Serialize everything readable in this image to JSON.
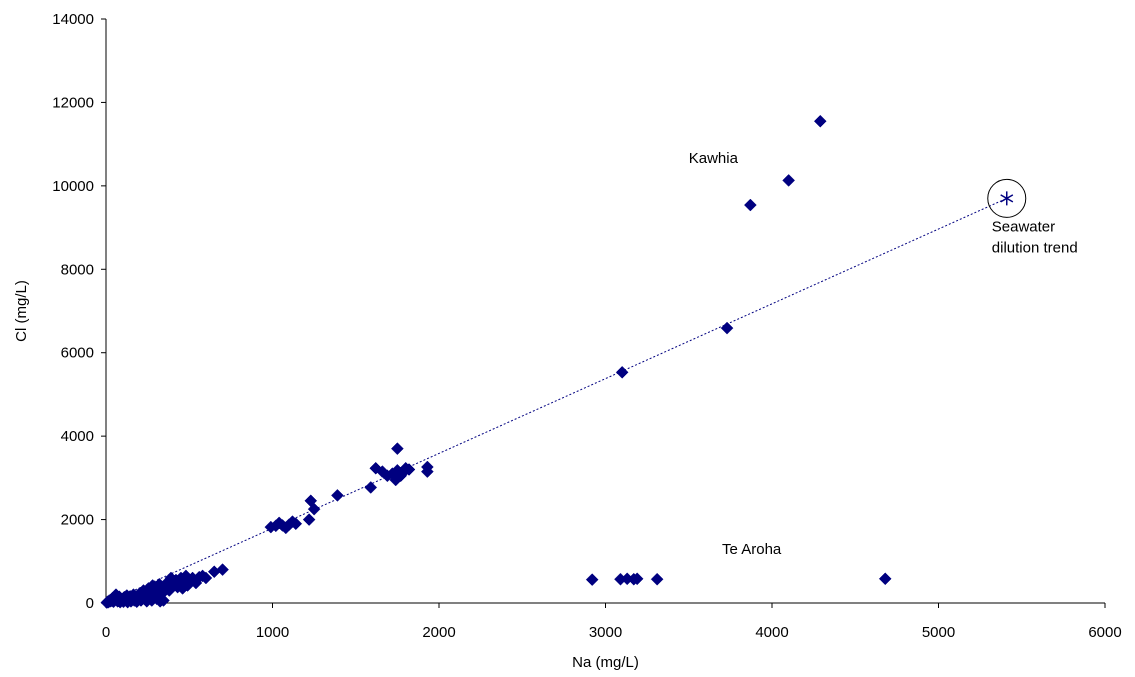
{
  "chart_data": {
    "type": "scatter",
    "xlabel": "Na (mg/L)",
    "ylabel": "Cl (mg/L)",
    "xlim": [
      0,
      6000
    ],
    "ylim": [
      0,
      14000
    ],
    "x_ticks": [
      0,
      1000,
      2000,
      3000,
      4000,
      5000,
      6000
    ],
    "y_ticks": [
      0,
      2000,
      4000,
      6000,
      8000,
      10000,
      12000,
      14000
    ],
    "grid": false,
    "legend": "none",
    "marker_color": "#000080",
    "series": [
      {
        "marker": "diamond",
        "points": [
          [
            5,
            10
          ],
          [
            10,
            30
          ],
          [
            15,
            20
          ],
          [
            20,
            60
          ],
          [
            25,
            40
          ],
          [
            30,
            80
          ],
          [
            35,
            50
          ],
          [
            40,
            120
          ],
          [
            45,
            30
          ],
          [
            50,
            90
          ],
          [
            55,
            160
          ],
          [
            60,
            200
          ],
          [
            65,
            110
          ],
          [
            70,
            40
          ],
          [
            75,
            70
          ],
          [
            80,
            150
          ],
          [
            85,
            20
          ],
          [
            90,
            60
          ],
          [
            100,
            100
          ],
          [
            105,
            30
          ],
          [
            110,
            140
          ],
          [
            120,
            60
          ],
          [
            125,
            180
          ],
          [
            130,
            20
          ],
          [
            140,
            90
          ],
          [
            145,
            160
          ],
          [
            150,
            40
          ],
          [
            160,
            120
          ],
          [
            165,
            200
          ],
          [
            170,
            60
          ],
          [
            175,
            100
          ],
          [
            180,
            150
          ],
          [
            185,
            30
          ],
          [
            190,
            80
          ],
          [
            200,
            220
          ],
          [
            205,
            130
          ],
          [
            210,
            60
          ],
          [
            220,
            180
          ],
          [
            225,
            300
          ],
          [
            230,
            100
          ],
          [
            240,
            250
          ],
          [
            245,
            40
          ],
          [
            250,
            200
          ],
          [
            255,
            350
          ],
          [
            260,
            120
          ],
          [
            270,
            300
          ],
          [
            275,
            60
          ],
          [
            280,
            420
          ],
          [
            285,
            180
          ],
          [
            290,
            250
          ],
          [
            300,
            380
          ],
          [
            305,
            100
          ],
          [
            310,
            300
          ],
          [
            320,
            450
          ],
          [
            325,
            40
          ],
          [
            330,
            200
          ],
          [
            340,
            350
          ],
          [
            345,
            60
          ],
          [
            350,
            280
          ],
          [
            360,
            420
          ],
          [
            370,
            500
          ],
          [
            380,
            300
          ],
          [
            390,
            600
          ],
          [
            400,
            450
          ],
          [
            420,
            550
          ],
          [
            430,
            380
          ],
          [
            440,
            480
          ],
          [
            450,
            600
          ],
          [
            460,
            350
          ],
          [
            470,
            520
          ],
          [
            480,
            650
          ],
          [
            490,
            420
          ],
          [
            500,
            550
          ],
          [
            520,
            600
          ],
          [
            540,
            480
          ],
          [
            560,
            620
          ],
          [
            580,
            650
          ],
          [
            600,
            600
          ],
          [
            650,
            750
          ],
          [
            700,
            800
          ],
          [
            990,
            1820
          ],
          [
            1020,
            1850
          ],
          [
            1040,
            1920
          ],
          [
            1060,
            1860
          ],
          [
            1080,
            1800
          ],
          [
            1100,
            1880
          ],
          [
            1120,
            1950
          ],
          [
            1140,
            1900
          ],
          [
            1220,
            2000
          ],
          [
            1230,
            2450
          ],
          [
            1250,
            2250
          ],
          [
            1390,
            2580
          ],
          [
            1590,
            2770
          ],
          [
            1620,
            3230
          ],
          [
            1660,
            3150
          ],
          [
            1690,
            3050
          ],
          [
            1720,
            3100
          ],
          [
            1740,
            2950
          ],
          [
            1750,
            3180
          ],
          [
            1750,
            3700
          ],
          [
            1770,
            3050
          ],
          [
            1790,
            3150
          ],
          [
            1800,
            3230
          ],
          [
            1820,
            3200
          ],
          [
            1930,
            3260
          ],
          [
            1930,
            3150
          ],
          [
            3100,
            5530
          ],
          [
            3730,
            6590
          ],
          [
            3870,
            9540
          ],
          [
            4100,
            10130
          ],
          [
            4290,
            11550
          ],
          [
            2920,
            560
          ],
          [
            3090,
            570
          ],
          [
            3130,
            580
          ],
          [
            3170,
            570
          ],
          [
            3190,
            580
          ],
          [
            3310,
            570
          ],
          [
            4680,
            580
          ]
        ]
      }
    ],
    "seawater_point": [
      5410,
      9700
    ],
    "trend_line": [
      [
        0,
        0
      ],
      [
        5410,
        9700
      ]
    ],
    "annotations": [
      {
        "text": "Kawhia",
        "at": [
          3500,
          10550
        ]
      },
      {
        "text": "Te Aroha",
        "at": [
          3700,
          1170
        ]
      },
      {
        "text": "Seawater",
        "at": [
          5320,
          8900
        ]
      },
      {
        "text": "dilution trend",
        "at": [
          5320,
          8400
        ]
      }
    ]
  }
}
